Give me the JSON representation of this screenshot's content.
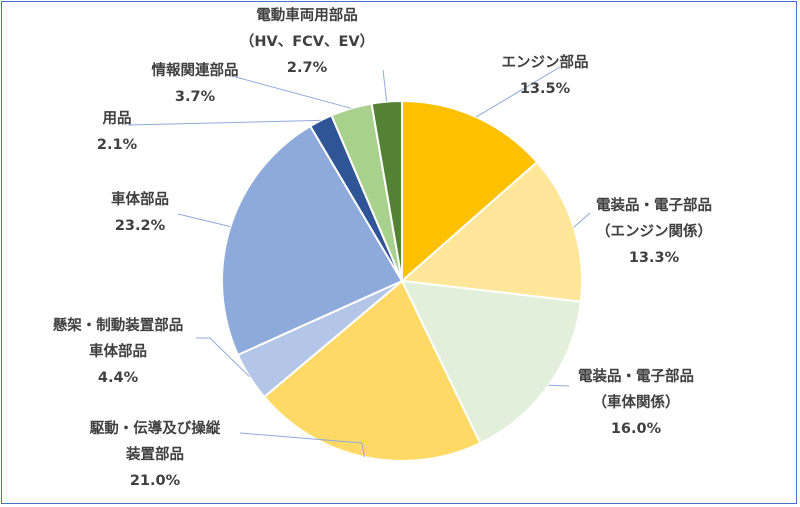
{
  "chart_data": {
    "type": "pie",
    "title": "",
    "start_angle_deg": 0,
    "direction": "clockwise",
    "slices": [
      {
        "label": [
          "エンジン部品"
        ],
        "value": 13.5,
        "value_text": "13.5%",
        "color": "#ffc000"
      },
      {
        "label": [
          "電装品・電子部品",
          "（エンジン関係）"
        ],
        "value": 13.3,
        "value_text": "13.3%",
        "color": "#ffe699"
      },
      {
        "label": [
          "電装品・電子部品",
          "（車体関係）"
        ],
        "value": 16.0,
        "value_text": "16.0%",
        "color": "#e2efda"
      },
      {
        "label": [
          "駆動・伝導及び操縦",
          "装置部品"
        ],
        "value": 21.0,
        "value_text": "21.0%",
        "color": "#ffd966"
      },
      {
        "label": [
          "懸架・制動装置部品",
          "車体部品"
        ],
        "value": 4.4,
        "value_text": "4.4%",
        "color": "#b4c6e7"
      },
      {
        "label": [
          "車体部品"
        ],
        "value": 23.2,
        "value_text": "23.2%",
        "color": "#8eaadb"
      },
      {
        "label": [
          "用品"
        ],
        "value": 2.1,
        "value_text": "2.1%",
        "color": "#2f5597"
      },
      {
        "label": [
          "情報関連部品"
        ],
        "value": 3.7,
        "value_text": "3.7%",
        "color": "#a9d18e"
      },
      {
        "label": [
          "電動車両用部品",
          "（HV、FCV、EV）"
        ],
        "value": 2.7,
        "value_text": "2.7%",
        "color": "#548235"
      }
    ]
  }
}
